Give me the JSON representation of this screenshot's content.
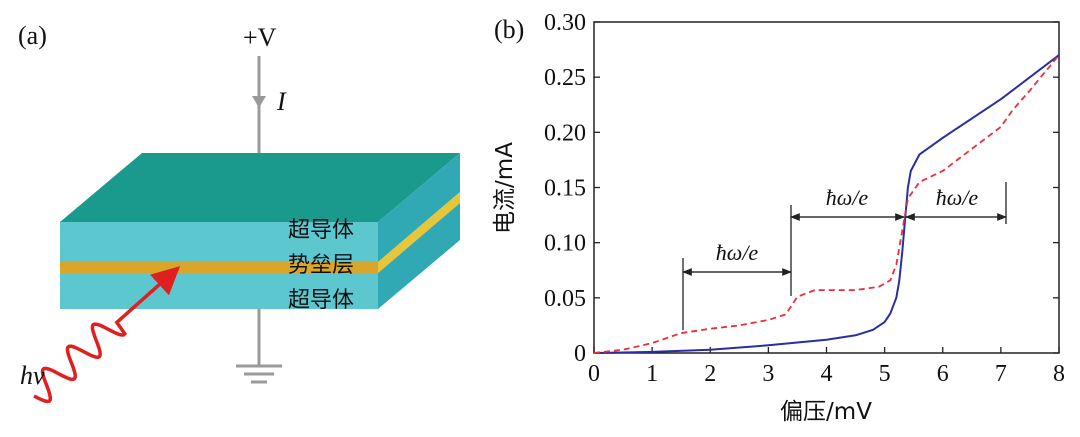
{
  "panel_a": {
    "label": "(a)",
    "voltage_label": "+V",
    "current_label": "I",
    "layer_top": "超导体",
    "layer_barrier": "势垒层",
    "layer_bottom": "超导体",
    "photon_label": "hν",
    "colors": {
      "slab_top": "#1a9a8c",
      "slab_front": "#5cc7cf",
      "slab_side": "#31a9b4",
      "barrier": "#d9a52a",
      "photon": "#e02020",
      "wire": "#9a9a9a"
    }
  },
  "panel_b": {
    "label": "(b)",
    "annotations": [
      "ħω/e",
      "ħω/e",
      "ħω/e"
    ],
    "chart_data": {
      "type": "line",
      "xlabel": "偏压/mV",
      "ylabel": "电流/mA",
      "xlim": [
        0,
        8
      ],
      "ylim": [
        0,
        0.3
      ],
      "x_ticks": [
        "0",
        "1",
        "2",
        "3",
        "4",
        "5",
        "6",
        "7",
        "8"
      ],
      "y_ticks": [
        "0",
        "0.05",
        "0.10",
        "0.15",
        "0.20",
        "0.25",
        "0.30"
      ],
      "grid": false,
      "series": [
        {
          "style": "solid",
          "color": "#2a2ea0",
          "x": [
            0,
            1,
            2,
            3,
            4,
            4.5,
            4.8,
            5.0,
            5.1,
            5.2,
            5.25,
            5.3,
            5.35,
            5.4,
            5.45,
            5.5,
            5.6,
            6,
            7,
            8
          ],
          "y": [
            0,
            0.001,
            0.003,
            0.007,
            0.012,
            0.016,
            0.021,
            0.028,
            0.036,
            0.05,
            0.065,
            0.09,
            0.12,
            0.15,
            0.165,
            0.17,
            0.18,
            0.195,
            0.23,
            0.27
          ]
        },
        {
          "style": "dashed",
          "color": "#e8303a",
          "x": [
            0,
            0.5,
            1,
            1.5,
            2,
            2.5,
            3,
            3.3,
            3.5,
            3.8,
            4.5,
            4.9,
            5.1,
            5.2,
            5.3,
            5.4,
            5.6,
            6,
            7,
            7.2,
            7.5,
            8
          ],
          "y": [
            0,
            0.003,
            0.009,
            0.018,
            0.022,
            0.025,
            0.03,
            0.035,
            0.051,
            0.057,
            0.057,
            0.06,
            0.066,
            0.08,
            0.11,
            0.14,
            0.155,
            0.165,
            0.205,
            0.22,
            0.238,
            0.27
          ]
        }
      ]
    }
  }
}
